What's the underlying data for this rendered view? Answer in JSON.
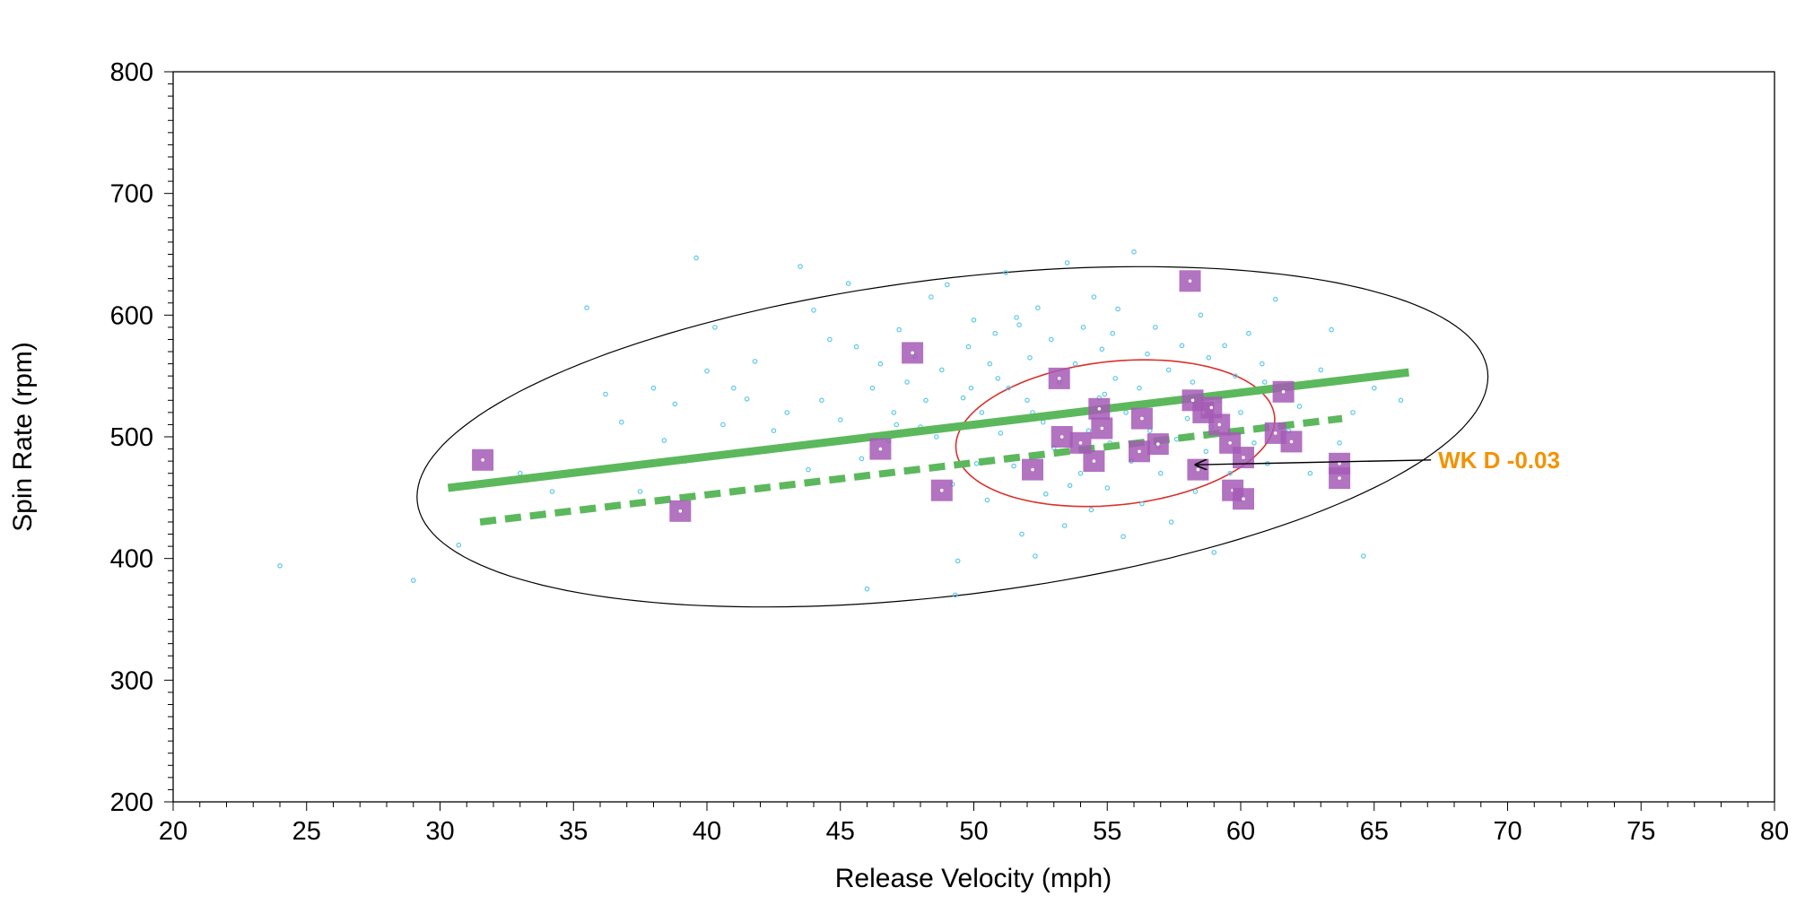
{
  "chart_data": {
    "type": "scatter",
    "title": "",
    "xlabel": "Release Velocity (mph)",
    "ylabel": "Spin Rate (rpm)",
    "xlim": [
      20,
      80
    ],
    "ylim": [
      200,
      800
    ],
    "x_ticks": [
      20,
      25,
      30,
      35,
      40,
      45,
      50,
      55,
      60,
      65,
      70,
      75,
      80
    ],
    "y_ticks": [
      200,
      300,
      400,
      500,
      600,
      700,
      800
    ],
    "x_tick_labels": [
      "20",
      "25",
      "30",
      "35",
      "40",
      "45",
      "50",
      "55",
      "60",
      "65",
      "70",
      "75",
      "80"
    ],
    "y_tick_labels": [
      "200",
      "300",
      "400",
      "500",
      "600",
      "700",
      "800"
    ],
    "grid": false,
    "colors": {
      "background_points": "#5bc8e6",
      "highlight_points": "#a45bb5",
      "fit_line": "#5cb85c",
      "population_ellipse": "#000000",
      "player_ellipse": "#d9312b",
      "annotation": "#f39200"
    },
    "population_points": [
      [
        24.0,
        394
      ],
      [
        29.0,
        382
      ],
      [
        30.7,
        411
      ],
      [
        33.0,
        470
      ],
      [
        34.2,
        455
      ],
      [
        34.4,
        437
      ],
      [
        35.5,
        606
      ],
      [
        36.2,
        535
      ],
      [
        36.8,
        512
      ],
      [
        37.5,
        455
      ],
      [
        38.0,
        540
      ],
      [
        38.4,
        497
      ],
      [
        38.8,
        527
      ],
      [
        39.2,
        480
      ],
      [
        39.6,
        647
      ],
      [
        40.0,
        554
      ],
      [
        40.3,
        590
      ],
      [
        40.6,
        510
      ],
      [
        41.0,
        540
      ],
      [
        41.5,
        531
      ],
      [
        41.8,
        562
      ],
      [
        42.2,
        488
      ],
      [
        42.5,
        505
      ],
      [
        43.0,
        520
      ],
      [
        43.5,
        640
      ],
      [
        43.8,
        473
      ],
      [
        44.0,
        604
      ],
      [
        44.3,
        530
      ],
      [
        44.6,
        580
      ],
      [
        45.0,
        514
      ],
      [
        45.3,
        626
      ],
      [
        45.6,
        574
      ],
      [
        46.0,
        375
      ],
      [
        46.2,
        540
      ],
      [
        46.5,
        560
      ],
      [
        46.8,
        497
      ],
      [
        47.0,
        520
      ],
      [
        47.2,
        588
      ],
      [
        47.5,
        545
      ],
      [
        47.8,
        566
      ],
      [
        48.0,
        508
      ],
      [
        48.2,
        530
      ],
      [
        48.4,
        615
      ],
      [
        48.6,
        500
      ],
      [
        48.8,
        555
      ],
      [
        49.0,
        625
      ],
      [
        49.2,
        461
      ],
      [
        49.3,
        370
      ],
      [
        49.4,
        398
      ],
      [
        49.6,
        532
      ],
      [
        49.8,
        574
      ],
      [
        50.0,
        596
      ],
      [
        50.1,
        478
      ],
      [
        50.3,
        520
      ],
      [
        50.5,
        448
      ],
      [
        50.6,
        560
      ],
      [
        50.8,
        585
      ],
      [
        51.0,
        503
      ],
      [
        51.2,
        635
      ],
      [
        51.3,
        540
      ],
      [
        51.5,
        476
      ],
      [
        51.6,
        598
      ],
      [
        51.8,
        420
      ],
      [
        52.0,
        530
      ],
      [
        52.1,
        565
      ],
      [
        52.3,
        402
      ],
      [
        52.4,
        606
      ],
      [
        52.6,
        512
      ],
      [
        52.7,
        453
      ],
      [
        52.9,
        580
      ],
      [
        53.0,
        491
      ],
      [
        53.2,
        545
      ],
      [
        53.4,
        427
      ],
      [
        53.5,
        643
      ],
      [
        53.7,
        520
      ],
      [
        53.8,
        560
      ],
      [
        54.0,
        470
      ],
      [
        54.1,
        590
      ],
      [
        54.3,
        505
      ],
      [
        54.4,
        440
      ],
      [
        54.5,
        615
      ],
      [
        54.7,
        532
      ],
      [
        54.8,
        572
      ],
      [
        55.0,
        458
      ],
      [
        55.1,
        495
      ],
      [
        55.3,
        548
      ],
      [
        55.4,
        605
      ],
      [
        55.6,
        418
      ],
      [
        55.7,
        520
      ],
      [
        55.9,
        480
      ],
      [
        56.0,
        652
      ],
      [
        56.2,
        540
      ],
      [
        56.3,
        445
      ],
      [
        56.5,
        568
      ],
      [
        56.6,
        505
      ],
      [
        56.8,
        590
      ],
      [
        57.0,
        470
      ],
      [
        57.1,
        528
      ],
      [
        57.3,
        555
      ],
      [
        57.4,
        430
      ],
      [
        57.6,
        498
      ],
      [
        57.8,
        575
      ],
      [
        58.0,
        515
      ],
      [
        58.2,
        545
      ],
      [
        58.3,
        455
      ],
      [
        58.5,
        600
      ],
      [
        58.7,
        488
      ],
      [
        58.8,
        565
      ],
      [
        59.0,
        405
      ],
      [
        59.2,
        530
      ],
      [
        59.4,
        575
      ],
      [
        59.6,
        470
      ],
      [
        59.8,
        550
      ],
      [
        60.0,
        520
      ],
      [
        60.3,
        585
      ],
      [
        60.5,
        495
      ],
      [
        60.8,
        560
      ],
      [
        61.0,
        478
      ],
      [
        61.3,
        613
      ],
      [
        61.5,
        540
      ],
      [
        61.8,
        505
      ],
      [
        62.2,
        525
      ],
      [
        62.6,
        470
      ],
      [
        63.0,
        555
      ],
      [
        63.4,
        588
      ],
      [
        63.7,
        495
      ],
      [
        64.2,
        520
      ],
      [
        64.6,
        402
      ],
      [
        65.0,
        540
      ],
      [
        66.0,
        530
      ],
      [
        47.1,
        510
      ],
      [
        50.9,
        548
      ],
      [
        55.2,
        585
      ],
      [
        52.2,
        520
      ],
      [
        56.9,
        492
      ],
      [
        58.9,
        508
      ],
      [
        53.6,
        460
      ],
      [
        49.9,
        540
      ],
      [
        45.8,
        482
      ],
      [
        44.9,
        465
      ],
      [
        51.7,
        592
      ],
      [
        54.9,
        535
      ],
      [
        57.9,
        530
      ],
      [
        60.9,
        545
      ]
    ],
    "highlight_points": [
      [
        31.6,
        481
      ],
      [
        39.0,
        439
      ],
      [
        46.5,
        490
      ],
      [
        47.7,
        569
      ],
      [
        48.8,
        456
      ],
      [
        52.2,
        473
      ],
      [
        53.2,
        548
      ],
      [
        53.3,
        500
      ],
      [
        54.0,
        495
      ],
      [
        54.5,
        480
      ],
      [
        54.7,
        523
      ],
      [
        54.8,
        507
      ],
      [
        56.2,
        488
      ],
      [
        56.3,
        515
      ],
      [
        56.9,
        494
      ],
      [
        58.1,
        628
      ],
      [
        58.2,
        530
      ],
      [
        58.4,
        473
      ],
      [
        58.6,
        520
      ],
      [
        58.9,
        524
      ],
      [
        59.2,
        510
      ],
      [
        59.6,
        495
      ],
      [
        59.7,
        456
      ],
      [
        60.1,
        449
      ],
      [
        60.1,
        483
      ],
      [
        61.3,
        503
      ],
      [
        61.6,
        537
      ],
      [
        61.9,
        496
      ],
      [
        63.7,
        478
      ],
      [
        63.7,
        466
      ]
    ],
    "fit_lines": [
      {
        "name": "solid",
        "style": "solid",
        "x": [
          30.3,
          66.3
        ],
        "y": [
          458,
          553
        ]
      },
      {
        "name": "dashed",
        "style": "dashed",
        "x": [
          31.5,
          63.8
        ],
        "y": [
          430,
          515
        ]
      }
    ],
    "ellipses": [
      {
        "name": "population",
        "cx": 49.2,
        "cy": 500,
        "rx": 20.2,
        "ry": 130,
        "angle_deg": 7,
        "color": "#000000"
      },
      {
        "name": "player",
        "cx": 55.3,
        "cy": 503,
        "rx": 6.0,
        "ry": 59,
        "angle_deg": 6,
        "color": "#d9312b"
      }
    ],
    "annotation": {
      "text": "WK D -0.03",
      "x": 67.4,
      "y": 481,
      "arrow_to": [
        58.3,
        477
      ]
    }
  }
}
